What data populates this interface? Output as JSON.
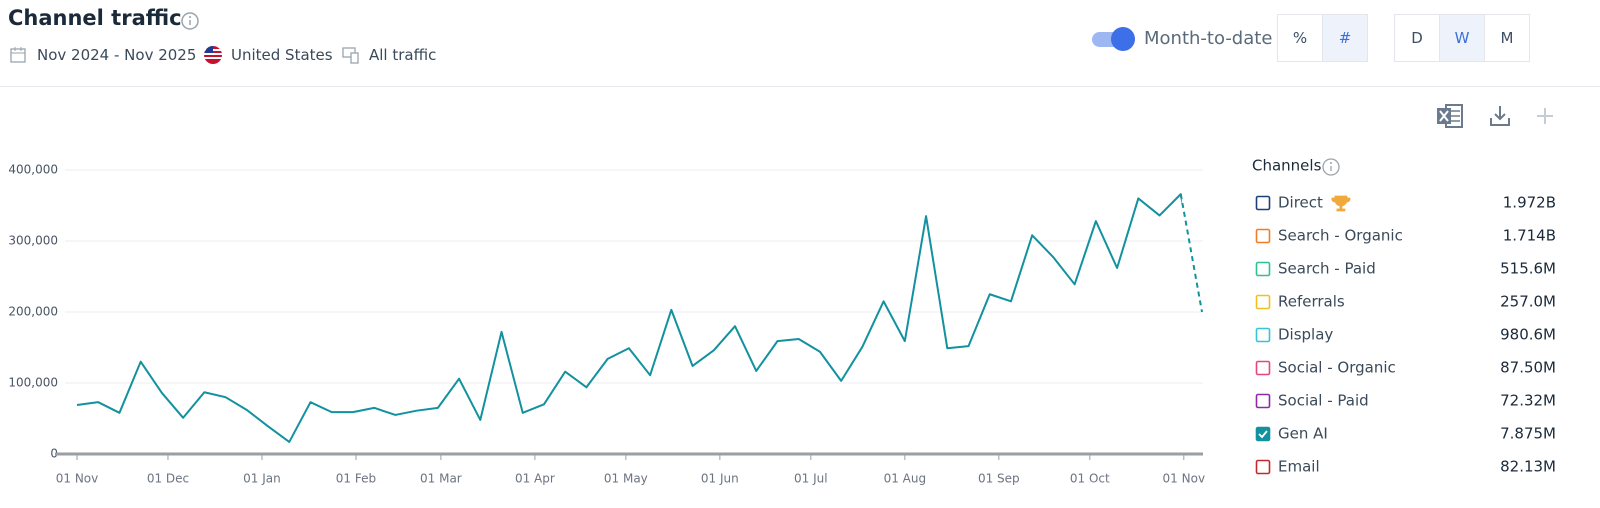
{
  "header": {
    "title": "Channel traffic",
    "date_range": "Nov 2024 - Nov 2025",
    "country": "United States",
    "traffic": "All traffic"
  },
  "controls": {
    "toggle": {
      "label": "Month-to-date",
      "on": true
    },
    "unit_buttons": [
      "%",
      "#"
    ],
    "unit_selected": 1,
    "period_buttons": [
      "D",
      "W",
      "M"
    ],
    "period_selected": 1
  },
  "chart_data": {
    "type": "line",
    "x": [
      0,
      7,
      14,
      21,
      28,
      35,
      42,
      49,
      56,
      63,
      70,
      77,
      84,
      91,
      98,
      105,
      112,
      119,
      126,
      133,
      140,
      147,
      154,
      161,
      168,
      175,
      182,
      189,
      196,
      203,
      210,
      217,
      224,
      231,
      238,
      245,
      252,
      259,
      266,
      273,
      280,
      287,
      294,
      301,
      308,
      315,
      322,
      329,
      336,
      343,
      350,
      357,
      364,
      371
    ],
    "xlim": [
      0,
      371
    ],
    "xticks": [
      {
        "value": 0,
        "label": "01 Nov"
      },
      {
        "value": 30,
        "label": "01 Dec"
      },
      {
        "value": 61,
        "label": "01 Jan"
      },
      {
        "value": 92,
        "label": "01 Feb"
      },
      {
        "value": 120,
        "label": "01 Mar"
      },
      {
        "value": 151,
        "label": "01 Apr"
      },
      {
        "value": 181,
        "label": "01 May"
      },
      {
        "value": 212,
        "label": "01 Jun"
      },
      {
        "value": 242,
        "label": "01 Jul"
      },
      {
        "value": 273,
        "label": "01 Aug"
      },
      {
        "value": 304,
        "label": "01 Sep"
      },
      {
        "value": 334,
        "label": "01 Oct"
      },
      {
        "value": 365,
        "label": "01 Nov"
      }
    ],
    "ylim": [
      0,
      400000
    ],
    "yticks": [
      0,
      {
        "value": 100000,
        "label": "100,000"
      },
      {
        "value": 200000,
        "label": "200,000"
      },
      {
        "value": 300000,
        "label": "300,000"
      },
      {
        "value": 400000,
        "label": "400,000"
      }
    ],
    "grid": true,
    "last_point_partial": true,
    "series": [
      {
        "color": "#12919f",
        "values": [
          69000,
          73000,
          58000,
          130000,
          86000,
          51000,
          87000,
          80000,
          62000,
          39000,
          17000,
          73000,
          59000,
          59000,
          65000,
          55000,
          61000,
          65000,
          106000,
          48000,
          172000,
          58000,
          70000,
          116000,
          94000,
          134000,
          149000,
          111000,
          203000,
          124000,
          146000,
          180000,
          117000,
          159000,
          162000,
          144000,
          103000,
          151000,
          215000,
          159000,
          335000,
          149000,
          152000,
          225000,
          215000,
          308000,
          277000,
          239000,
          328000,
          262000,
          360000,
          336000,
          366000,
          200000
        ]
      }
    ],
    "legend": {
      "title": "Channels",
      "items": [
        {
          "name": "Direct",
          "color": "#1f3f7a",
          "total": "1.972B",
          "checked": false
        },
        {
          "name": "Search - Organic",
          "color": "#f07c2a",
          "total": "1.714B",
          "checked": false
        },
        {
          "name": "Search - Paid",
          "color": "#2bc29a",
          "total": "515.6M",
          "checked": false
        },
        {
          "name": "Referrals",
          "color": "#f2c01e",
          "total": "257.0M",
          "checked": false
        },
        {
          "name": "Display",
          "color": "#37c4d6",
          "total": "980.6M",
          "checked": false
        },
        {
          "name": "Social - Organic",
          "color": "#e8457c",
          "total": "87.50M",
          "checked": false
        },
        {
          "name": "Social - Paid",
          "color": "#8e2aa8",
          "total": "72.32M",
          "checked": false
        },
        {
          "name": "Gen AI",
          "color": "#12919f",
          "total": "7.875M",
          "checked": true
        },
        {
          "name": "Email",
          "color": "#c62828",
          "total": "82.13M",
          "checked": false
        }
      ]
    }
  }
}
